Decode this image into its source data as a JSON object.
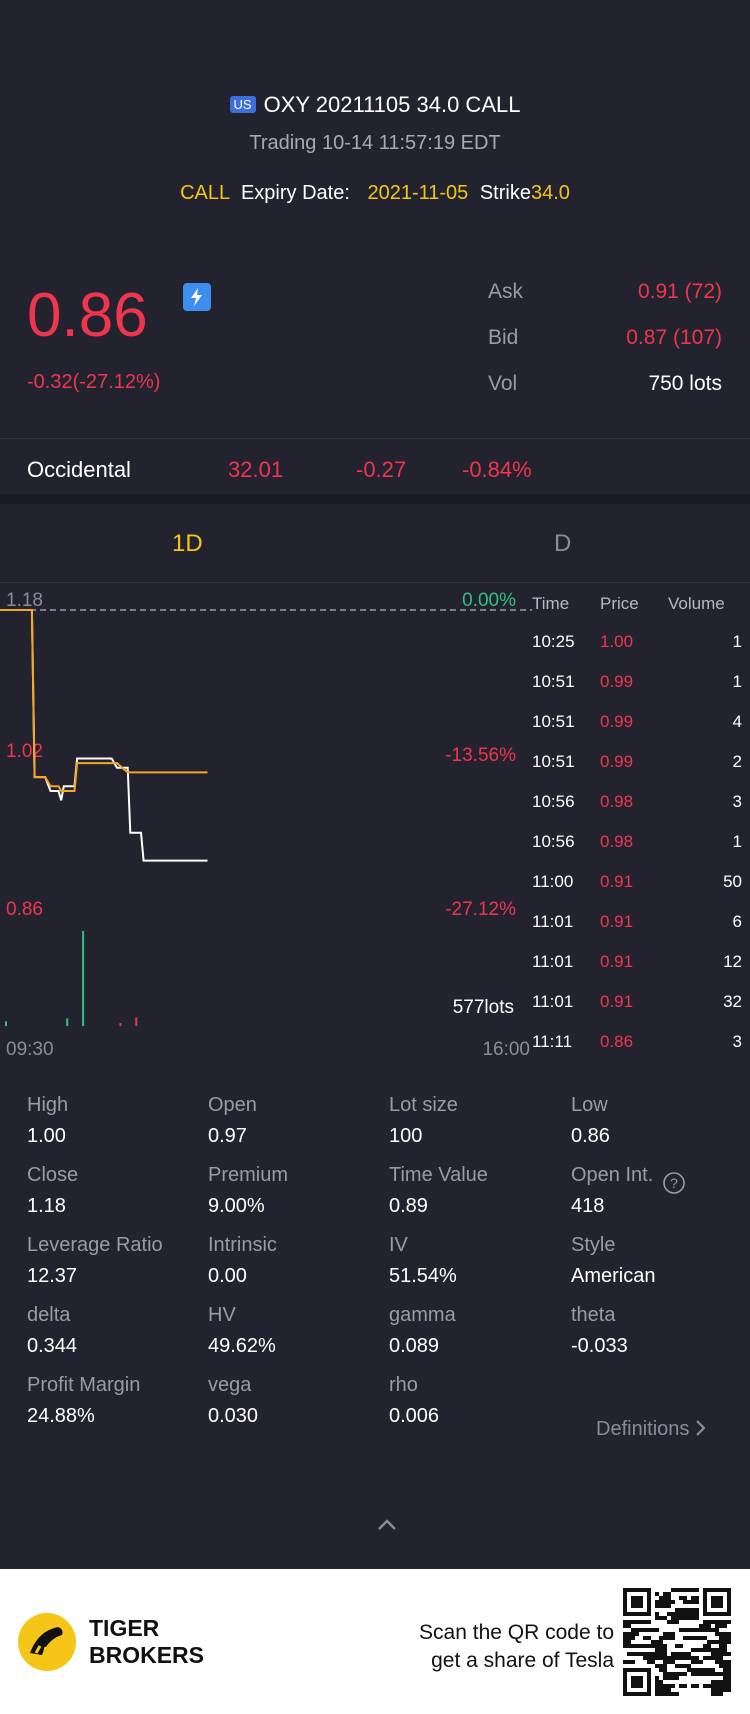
{
  "header": {
    "market_badge": "US",
    "title": "OXY 20211105 34.0 CALL",
    "status": "Trading  10-14 11:57:19 EDT",
    "type": "CALL",
    "expiry_label": "Expiry Date:",
    "expiry_value": "2021-11-05",
    "strike_label": "Strike",
    "strike_value": "34.0"
  },
  "quote": {
    "price": "0.86",
    "change": "-0.32(-27.12%)",
    "ask_label": "Ask",
    "ask_value": "0.91 (72)",
    "bid_label": "Bid",
    "bid_value": "0.87 (107)",
    "vol_label": "Vol",
    "vol_value": "750 lots"
  },
  "underlying": {
    "name": "Occidental",
    "price": "32.01",
    "change": "-0.27",
    "pct": "-0.84%"
  },
  "tabs": [
    "1D",
    "D"
  ],
  "chart_data": {
    "type": "line",
    "y_labels": {
      "top": "1.18",
      "mid": "1.02",
      "bottom": "0.86"
    },
    "pct_labels": {
      "top": "0.00%",
      "mid": "-13.56%",
      "bottom": "-27.12%"
    },
    "x_start": "09:30",
    "x_end": "16:00",
    "volume_label": "577lots",
    "ylim": [
      0.86,
      1.18
    ],
    "series": [
      {
        "color": "#ffffff",
        "points": [
          [
            0,
            1.18
          ],
          [
            0.06,
            1.18
          ],
          [
            0.065,
            1.0
          ],
          [
            0.085,
            1.0
          ],
          [
            0.095,
            0.985
          ],
          [
            0.11,
            0.985
          ],
          [
            0.115,
            0.975
          ],
          [
            0.12,
            0.99
          ],
          [
            0.14,
            0.99
          ],
          [
            0.145,
            1.02
          ],
          [
            0.21,
            1.02
          ],
          [
            0.22,
            1.01
          ],
          [
            0.24,
            1.01
          ],
          [
            0.245,
            0.94
          ],
          [
            0.265,
            0.94
          ],
          [
            0.27,
            0.91
          ],
          [
            0.39,
            0.91
          ]
        ]
      },
      {
        "color": "#f5a623",
        "points": [
          [
            0,
            1.18
          ],
          [
            0.06,
            1.18
          ],
          [
            0.065,
            1.0
          ],
          [
            0.085,
            1.0
          ],
          [
            0.095,
            0.99
          ],
          [
            0.11,
            0.99
          ],
          [
            0.115,
            0.985
          ],
          [
            0.14,
            0.985
          ],
          [
            0.145,
            1.015
          ],
          [
            0.22,
            1.015
          ],
          [
            0.24,
            1.005
          ],
          [
            0.39,
            1.005
          ]
        ]
      }
    ],
    "volume_bars": [
      {
        "x": 0.0,
        "h": 0.05,
        "color": "#2ec27e"
      },
      {
        "x": 0.115,
        "h": 0.08,
        "color": "#2ec27e"
      },
      {
        "x": 0.145,
        "h": 1.0,
        "color": "#2ec27e"
      },
      {
        "x": 0.215,
        "h": 0.03,
        "color": "#f0354f"
      },
      {
        "x": 0.245,
        "h": 0.09,
        "color": "#f0354f"
      }
    ]
  },
  "trades": {
    "headers": [
      "Time",
      "Price",
      "Volume"
    ],
    "rows": [
      [
        "10:25",
        "1.00",
        "1"
      ],
      [
        "10:51",
        "0.99",
        "1"
      ],
      [
        "10:51",
        "0.99",
        "4"
      ],
      [
        "10:51",
        "0.99",
        "2"
      ],
      [
        "10:56",
        "0.98",
        "3"
      ],
      [
        "10:56",
        "0.98",
        "1"
      ],
      [
        "11:00",
        "0.91",
        "50"
      ],
      [
        "11:01",
        "0.91",
        "6"
      ],
      [
        "11:01",
        "0.91",
        "12"
      ],
      [
        "11:01",
        "0.91",
        "32"
      ],
      [
        "11:11",
        "0.86",
        "3"
      ]
    ]
  },
  "stats": [
    [
      {
        "k": "High",
        "v": "1.00"
      },
      {
        "k": "Open",
        "v": "0.97"
      },
      {
        "k": "Lot size",
        "v": "100"
      },
      {
        "k": "Low",
        "v": "0.86"
      }
    ],
    [
      {
        "k": "Close",
        "v": "1.18"
      },
      {
        "k": "Premium",
        "v": "9.00%"
      },
      {
        "k": "Time Value",
        "v": "0.89"
      },
      {
        "k": "Open Int.",
        "v": "418"
      }
    ],
    [
      {
        "k": "Leverage Ratio",
        "v": "12.37"
      },
      {
        "k": "Intrinsic",
        "v": "0.00"
      },
      {
        "k": "IV",
        "v": "51.54%"
      },
      {
        "k": "Style",
        "v": "American"
      }
    ],
    [
      {
        "k": "delta",
        "v": "0.344"
      },
      {
        "k": "HV",
        "v": "49.62%"
      },
      {
        "k": "gamma",
        "v": "0.089"
      },
      {
        "k": "theta",
        "v": "-0.033"
      }
    ],
    [
      {
        "k": "Profit Margin",
        "v": "24.88%"
      },
      {
        "k": "vega",
        "v": "0.030"
      },
      {
        "k": "rho",
        "v": "0.006"
      }
    ]
  ],
  "definitions_label": "Definitions",
  "footer": {
    "brand_line1": "TIGER",
    "brand_line2": "BROKERS",
    "scan_line1": "Scan the QR code to",
    "scan_line2": "get a share of Tesla"
  }
}
